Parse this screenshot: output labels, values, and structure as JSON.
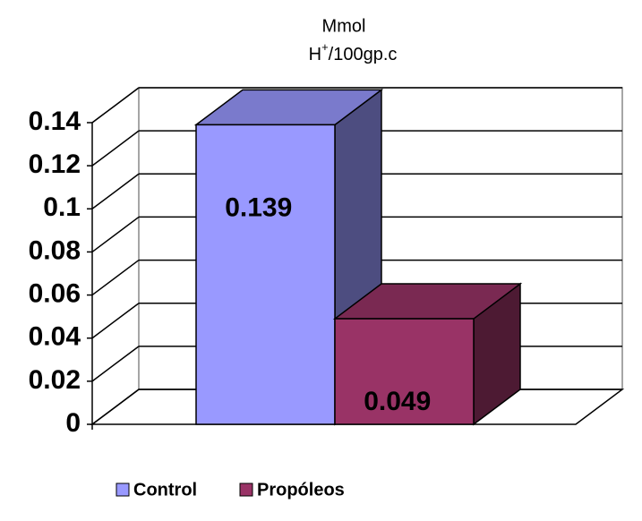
{
  "chart_data": {
    "type": "bar3d",
    "title": {
      "line1": "Mmol",
      "line2": {
        "base": "H",
        "sup": "+",
        "rest": "/100gp.c"
      }
    },
    "categories": [
      null
    ],
    "series": [
      {
        "name": "Control",
        "color": "#9999ff",
        "values": [
          0.139
        ]
      },
      {
        "name": "Propóleos",
        "color": "#993366",
        "values": [
          0.049
        ]
      }
    ],
    "ylim": [
      0,
      0.14
    ],
    "yticks": [
      0,
      0.02,
      0.04,
      0.06,
      0.08,
      0.1,
      0.12,
      0.14
    ],
    "grid": true
  }
}
